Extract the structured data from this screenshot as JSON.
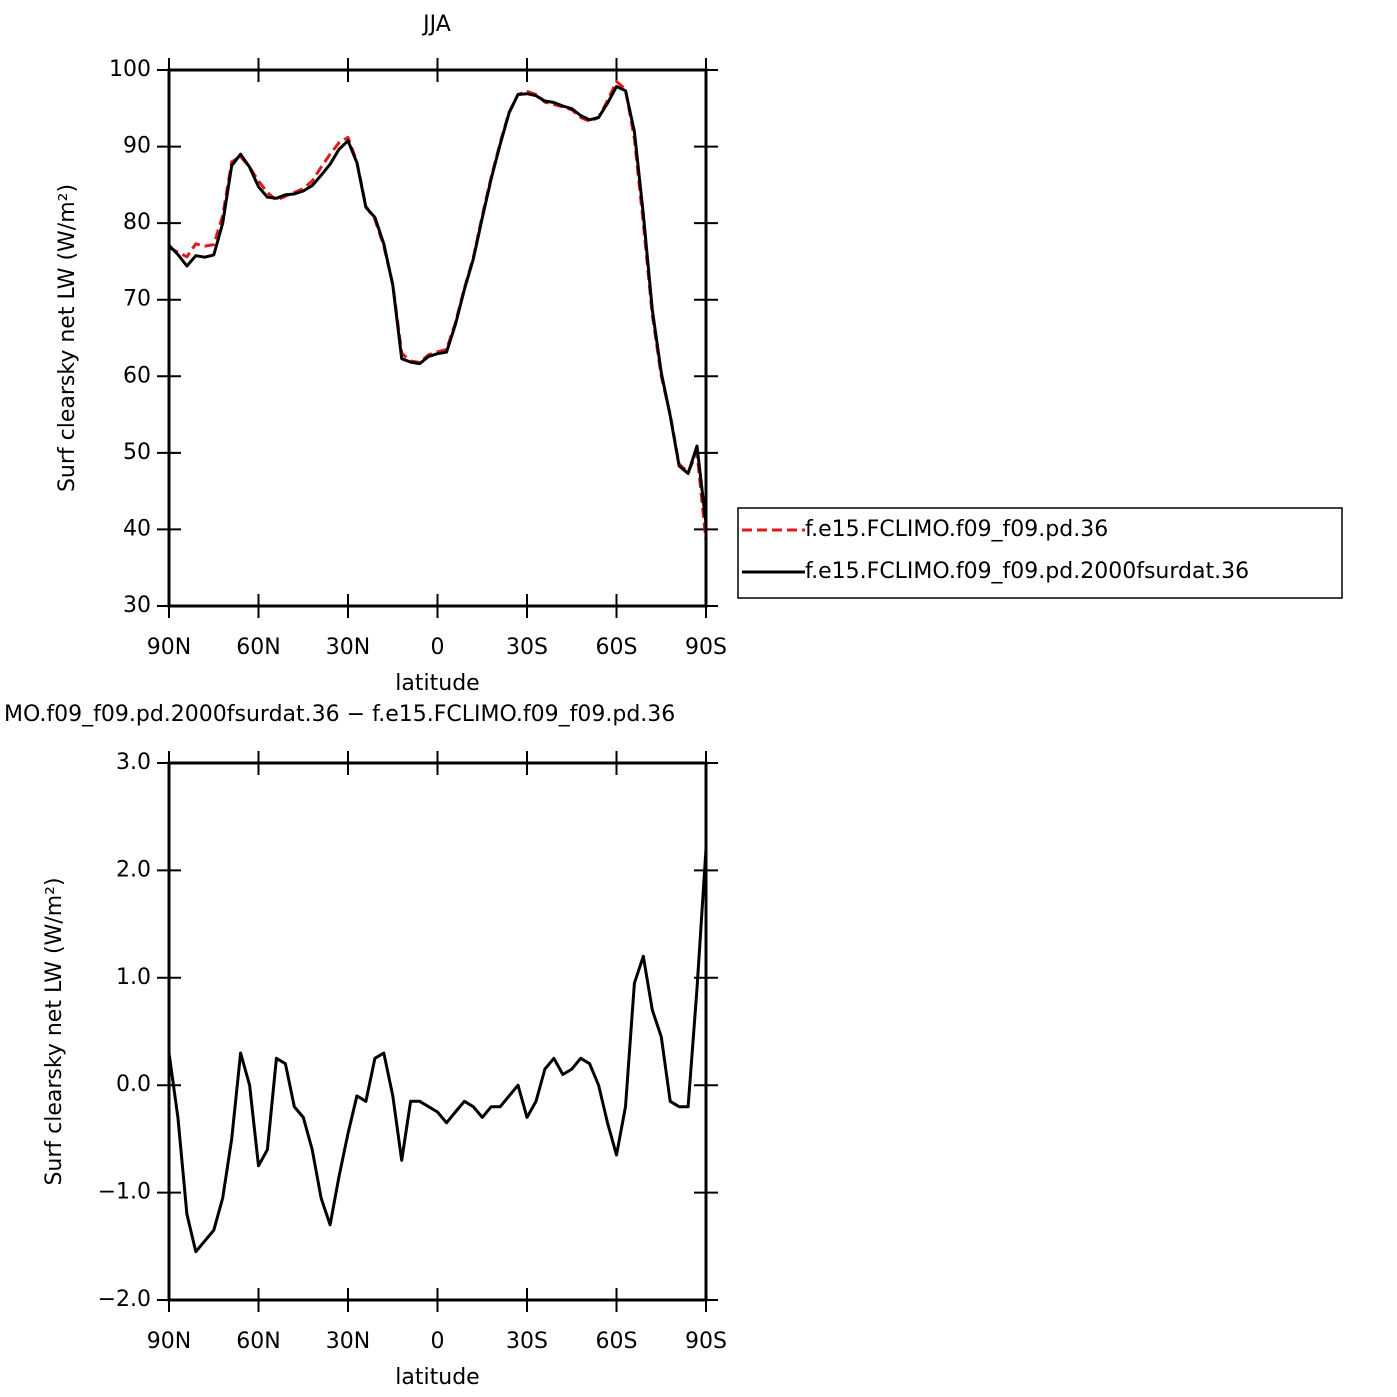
{
  "chart_data": [
    {
      "type": "line",
      "title": "JJA",
      "xlabel": "latitude",
      "ylabel": "Surf clearsky net LW (W/m²)",
      "x": [
        90,
        87,
        84,
        81,
        78,
        75,
        72,
        69,
        66,
        63,
        60,
        57,
        54,
        51,
        48,
        45,
        42,
        39,
        36,
        33,
        30,
        27,
        24,
        21,
        18,
        15,
        12,
        9,
        6,
        3,
        0,
        -3,
        -6,
        -9,
        -12,
        -15,
        -18,
        -21,
        -24,
        -27,
        -30,
        -33,
        -36,
        -39,
        -42,
        -45,
        -48,
        -51,
        -54,
        -57,
        -60,
        -63,
        -66,
        -69,
        -72,
        -75,
        -78,
        -81,
        -84,
        -87,
        -90
      ],
      "series": [
        {
          "name": "f.e15.FCLIMO.f09_f09.pd.36",
          "color": "#e0191c",
          "dashed": true,
          "values": [
            76.8,
            76.2,
            75.6,
            77.3,
            77.0,
            77.2,
            81,
            88,
            88.7,
            87.3,
            85.5,
            84,
            83,
            83.5,
            84,
            84.5,
            85.5,
            87.3,
            89,
            90.5,
            91.2,
            88,
            82.2,
            80.5,
            77,
            72,
            63,
            62,
            61.8,
            62.8,
            63.2,
            63.5,
            67,
            71.5,
            75.5,
            81,
            86,
            90.5,
            94.5,
            96.8,
            97.2,
            96.8,
            95.8,
            95.5,
            95.2,
            94.8,
            93.8,
            93.3,
            93.8,
            96,
            98.5,
            97.5,
            91,
            80,
            68,
            60,
            55,
            48.5,
            47.5,
            50,
            38.5
          ]
        },
        {
          "name": "f.e15.FCLIMO.f09_f09.pd.2000fsurdat.36",
          "color": "#000000",
          "dashed": false,
          "values": [
            77.1,
            75.9,
            74.4,
            75.75,
            75.55,
            75.85,
            80,
            87.5,
            89.0,
            87.3,
            84.75,
            83.4,
            83.25,
            83.7,
            83.8,
            84.2,
            84.9,
            86.25,
            87.7,
            89.65,
            90.75,
            87.9,
            82.05,
            80.75,
            77.3,
            71.9,
            62.3,
            61.85,
            61.65,
            62.6,
            62.95,
            63.15,
            66.75,
            71.35,
            75.3,
            80.7,
            85.8,
            90.3,
            94.4,
            96.8,
            96.9,
            96.65,
            95.95,
            95.75,
            95.3,
            94.95,
            94.05,
            93.5,
            93.8,
            95.65,
            97.85,
            97.3,
            91.95,
            81.2,
            68.7,
            60.45,
            54.85,
            48.3,
            47.3,
            50.9,
            40.7
          ]
        }
      ],
      "xlim": [
        90,
        -90
      ],
      "xticks": [
        {
          "value": 90,
          "label": "90N"
        },
        {
          "value": 60,
          "label": "60N"
        },
        {
          "value": 30,
          "label": "30N"
        },
        0,
        {
          "value": -30,
          "label": "30S"
        },
        {
          "value": -60,
          "label": "60S"
        },
        {
          "value": -90,
          "label": "90S"
        }
      ],
      "ylim": [
        30,
        100
      ],
      "yticks": [
        30,
        40,
        50,
        60,
        70,
        80,
        90,
        100
      ],
      "legend": "right"
    },
    {
      "type": "line",
      "title": "MO.f09_f09.pd.2000fsurdat.36 − f.e15.FCLIMO.f09_f09.pd.36",
      "xlabel": "latitude",
      "ylabel": "Surf clearsky net LW (W/m²)",
      "x": [
        90,
        87,
        84,
        81,
        78,
        75,
        72,
        69,
        66,
        63,
        60,
        57,
        54,
        51,
        48,
        45,
        42,
        39,
        36,
        33,
        30,
        27,
        24,
        21,
        18,
        15,
        12,
        9,
        6,
        3,
        0,
        -3,
        -6,
        -9,
        -12,
        -15,
        -18,
        -21,
        -24,
        -27,
        -30,
        -33,
        -36,
        -39,
        -42,
        -45,
        -48,
        -51,
        -54,
        -57,
        -60,
        -63,
        -66,
        -69,
        -72,
        -75,
        -78,
        -81,
        -84,
        -87,
        -90
      ],
      "series": [
        {
          "color": "#000000",
          "dashed": false,
          "values": [
            0.3,
            -0.3,
            -1.2,
            -1.55,
            -1.45,
            -1.35,
            -1.05,
            -0.5,
            0.3,
            0.0,
            -0.75,
            -0.6,
            0.25,
            0.2,
            -0.2,
            -0.3,
            -0.6,
            -1.05,
            -1.3,
            -0.85,
            -0.45,
            -0.1,
            -0.15,
            0.25,
            0.3,
            -0.1,
            -0.7,
            -0.15,
            -0.15,
            -0.2,
            -0.25,
            -0.35,
            -0.25,
            -0.15,
            -0.2,
            -0.3,
            -0.2,
            -0.2,
            -0.1,
            0.0,
            -0.3,
            -0.15,
            0.15,
            0.25,
            0.1,
            0.15,
            0.25,
            0.2,
            0.0,
            -0.35,
            -0.65,
            -0.2,
            0.95,
            1.2,
            0.7,
            0.45,
            -0.15,
            -0.2,
            -0.2,
            0.9,
            2.2
          ]
        }
      ],
      "xlim": [
        90,
        -90
      ],
      "xticks": [
        {
          "value": 90,
          "label": "90N"
        },
        {
          "value": 60,
          "label": "60N"
        },
        {
          "value": 30,
          "label": "30N"
        },
        0,
        {
          "value": -30,
          "label": "30S"
        },
        {
          "value": -60,
          "label": "60S"
        },
        {
          "value": -90,
          "label": "90S"
        }
      ],
      "ylim": [
        -2,
        3
      ],
      "yticks": [
        {
          "value": -2,
          "label": "−2.0"
        },
        {
          "value": -1,
          "label": "−1.0"
        },
        {
          "value": 0,
          "label": "0.0"
        },
        {
          "value": 1,
          "label": "1.0"
        },
        {
          "value": 2,
          "label": "2.0"
        },
        {
          "value": 3,
          "label": "3.0"
        }
      ]
    }
  ]
}
